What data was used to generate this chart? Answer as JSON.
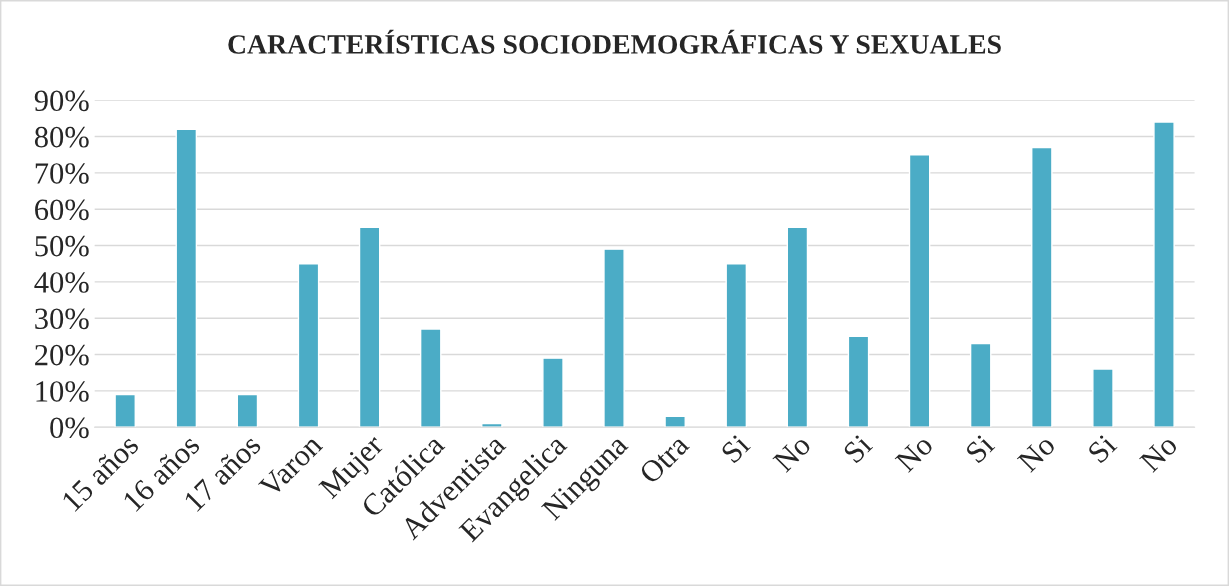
{
  "chart_data": {
    "type": "bar",
    "title": "CARACTERÍSTICAS SOCIODEMOGRÁFICAS Y SEXUALES",
    "categories": [
      "15 años",
      "16 años",
      "17 años",
      "Varon",
      "Mujer",
      "Católica",
      "Adventista",
      "Evangelica",
      "Ninguna",
      "Otra",
      "Si",
      "No",
      "Si",
      "No",
      "Si",
      "No",
      "Si",
      "No"
    ],
    "values": [
      9,
      82,
      9,
      45,
      55,
      27,
      1,
      19,
      49,
      3,
      45,
      55,
      25,
      75,
      23,
      77,
      16,
      84
    ],
    "color": "#4bacc6",
    "ylim": [
      0,
      90
    ],
    "yticks": [
      {
        "value": 0,
        "label": "0%"
      },
      {
        "value": 10,
        "label": "10%"
      },
      {
        "value": 20,
        "label": "20%"
      },
      {
        "value": 30,
        "label": "30%"
      },
      {
        "value": 40,
        "label": "40%"
      },
      {
        "value": 50,
        "label": "50%"
      },
      {
        "value": 60,
        "label": "60%"
      },
      {
        "value": 70,
        "label": "70%"
      },
      {
        "value": 80,
        "label": "80%"
      },
      {
        "value": 90,
        "label": "90%"
      }
    ],
    "grid": "y"
  }
}
